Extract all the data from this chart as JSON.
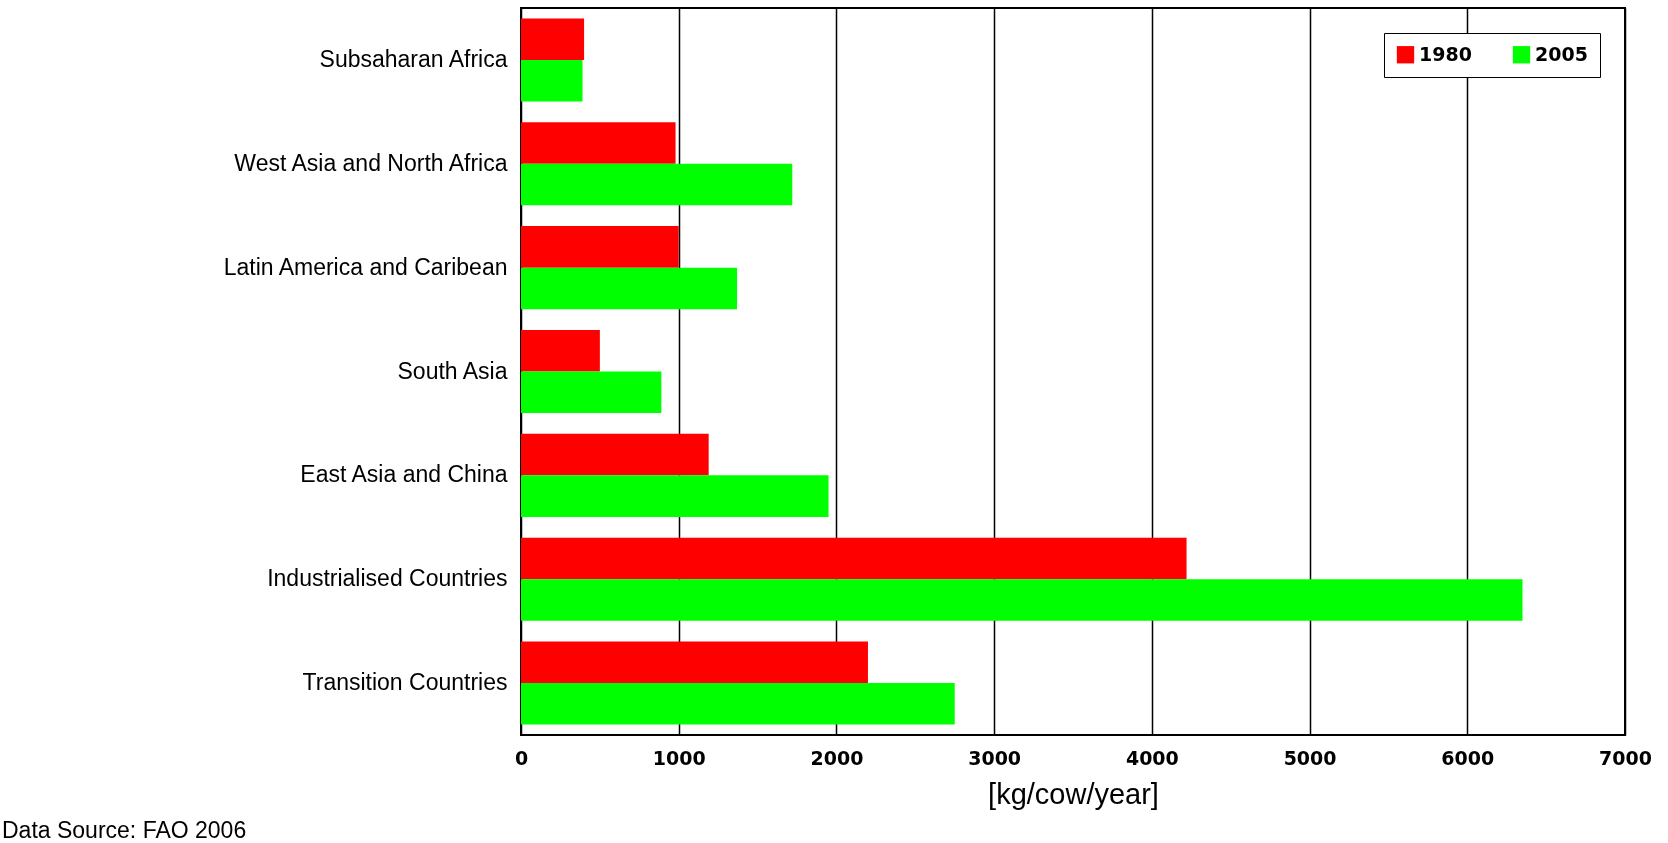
{
  "chart_data": {
    "type": "bar",
    "orientation": "horizontal",
    "categories": [
      "Subsaharan Africa",
      "West Asia and North Africa",
      "Latin America and Caribean",
      "South Asia",
      "East Asia and China",
      "Industrialised Countries",
      "Transition Countries"
    ],
    "series": [
      {
        "name": "1980",
        "color": "#ff0000",
        "values": [
          400,
          980,
          1000,
          500,
          1190,
          4220,
          2200
        ]
      },
      {
        "name": "2005",
        "color": "#00ff00",
        "values": [
          390,
          1720,
          1370,
          890,
          1950,
          6350,
          2750
        ]
      }
    ],
    "xlabel": "[kg/cow/year]",
    "xlim": [
      0,
      7000
    ],
    "xticks": [
      0,
      1000,
      2000,
      3000,
      4000,
      5000,
      6000,
      7000
    ],
    "grid": "x",
    "legend": "top right",
    "annotations": [
      "Data Source: FAO 2006"
    ]
  }
}
